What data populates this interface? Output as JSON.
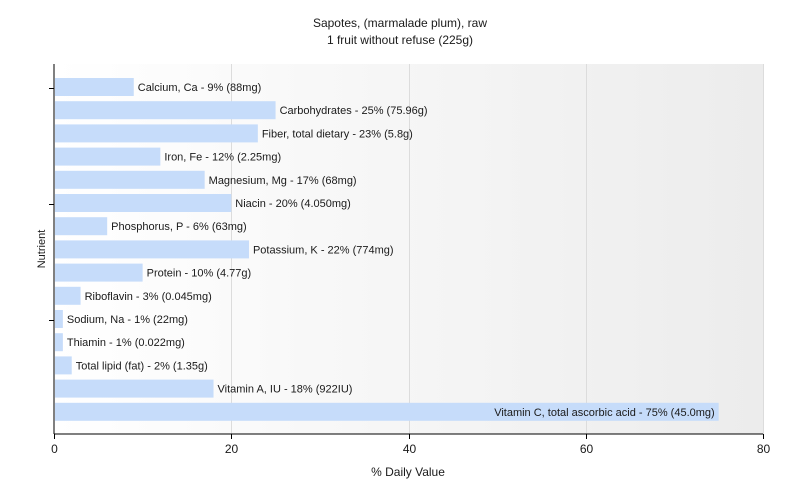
{
  "chart_data": {
    "type": "bar",
    "orientation": "horizontal",
    "title": "Sapotes, (marmalade plum), raw",
    "subtitle": "1 fruit without refuse (225g)",
    "xlabel": "% Daily Value",
    "ylabel": "Nutrient",
    "xlim": [
      0,
      80
    ],
    "xticks": [
      0,
      20,
      40,
      60,
      80
    ],
    "grid": "vertical",
    "bar_color": "#c6dcfa",
    "categories": [
      "Calcium, Ca",
      "Carbohydrates",
      "Fiber, total dietary",
      "Iron, Fe",
      "Magnesium, Mg",
      "Niacin",
      "Phosphorus, P",
      "Potassium, K",
      "Protein",
      "Riboflavin",
      "Sodium, Na",
      "Thiamin",
      "Total lipid (fat)",
      "Vitamin A, IU",
      "Vitamin C, total ascorbic acid"
    ],
    "values": [
      9,
      25,
      23,
      12,
      17,
      20,
      6,
      22,
      10,
      3,
      1,
      1,
      2,
      18,
      75
    ],
    "labels": [
      "Calcium, Ca - 9% (88mg)",
      "Carbohydrates - 25% (75.96g)",
      "Fiber, total dietary - 23% (5.8g)",
      "Iron, Fe - 12% (2.25mg)",
      "Magnesium, Mg - 17% (68mg)",
      "Niacin - 20% (4.050mg)",
      "Phosphorus, P - 6% (63mg)",
      "Potassium, K - 22% (774mg)",
      "Protein - 10% (4.77g)",
      "Riboflavin - 3% (0.045mg)",
      "Sodium, Na - 1% (22mg)",
      "Thiamin - 1% (0.022mg)",
      "Total lipid (fat) - 2% (1.35g)",
      "Vitamin A, IU - 18% (922IU)",
      "Vitamin C, total ascorbic acid - 75% (45.0mg)"
    ]
  }
}
